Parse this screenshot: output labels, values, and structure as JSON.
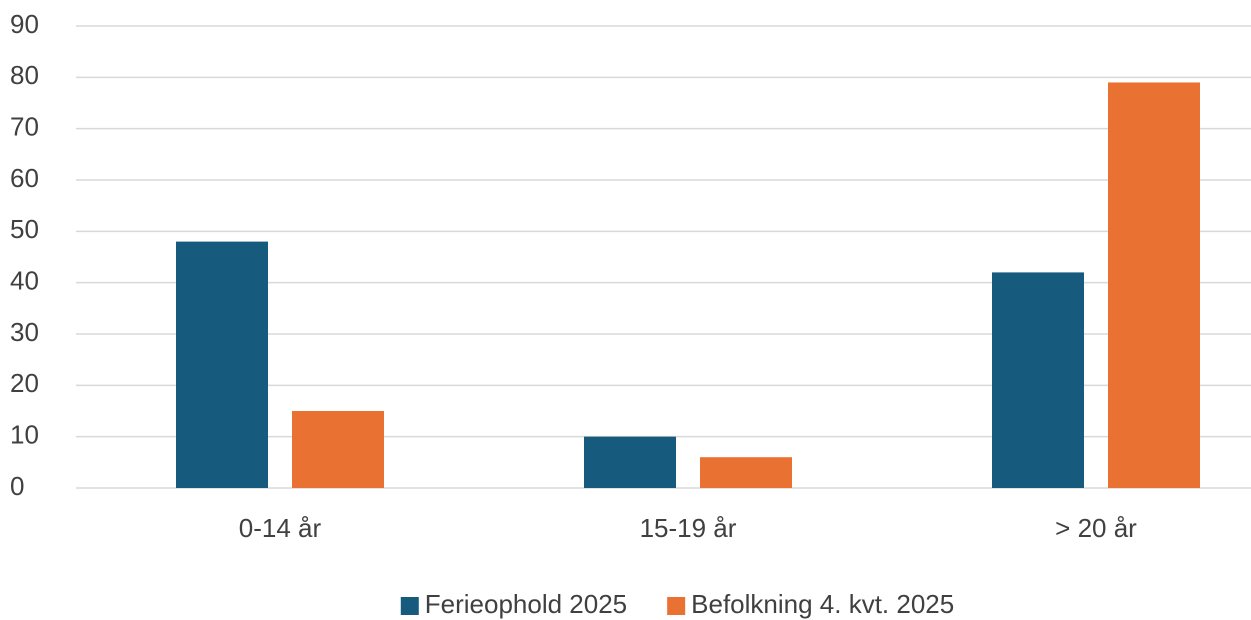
{
  "chart_data": {
    "type": "bar",
    "categories": [
      "0-14 år",
      "15-19 år",
      "> 20 år"
    ],
    "series": [
      {
        "name": "Ferieophold 2025",
        "color": "#165a7e",
        "values": [
          48,
          10,
          42
        ]
      },
      {
        "name": "Befolkning 4. kvt. 2025",
        "color": "#e97132",
        "values": [
          15,
          6,
          79
        ]
      }
    ],
    "ylim": [
      0,
      90
    ],
    "yticks": [
      0,
      10,
      20,
      30,
      40,
      50,
      60,
      70,
      80,
      90
    ],
    "grid": true,
    "legend": "bottom"
  }
}
